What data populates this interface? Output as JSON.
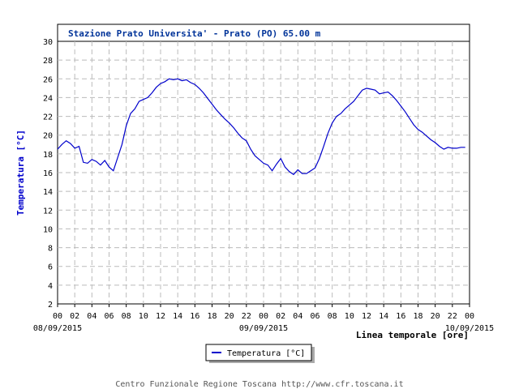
{
  "chart_data": {
    "type": "line",
    "title": "Stazione Prato Universita' - Prato (PO) 65.00 m",
    "ylabel": "Temperatura [°C]",
    "xlabel": "Linea temporale [ore]",
    "ylim": [
      2,
      30
    ],
    "yticks": [
      2,
      4,
      6,
      8,
      10,
      12,
      14,
      16,
      18,
      20,
      22,
      24,
      26,
      28,
      30
    ],
    "xlim": [
      0,
      48
    ],
    "xticks": [
      "00",
      "02",
      "04",
      "06",
      "08",
      "10",
      "12",
      "14",
      "16",
      "18",
      "20",
      "22",
      "00",
      "02",
      "04",
      "06",
      "08",
      "10",
      "12",
      "14",
      "16",
      "18",
      "20",
      "22",
      "00"
    ],
    "date_labels": [
      {
        "label": "08/09/2015",
        "hour": 0
      },
      {
        "label": "09/09/2015",
        "hour": 24
      },
      {
        "label": "10/09/2015",
        "hour": 48
      }
    ],
    "grid": true,
    "legend": "bottom-center",
    "series": [
      {
        "name": "Temperatura [°C]",
        "color": "#0000cc",
        "x": [
          0,
          0.5,
          1,
          1.5,
          2,
          2.5,
          3,
          3.5,
          4,
          4.5,
          5,
          5.5,
          6,
          6.5,
          7,
          7.5,
          8,
          8.5,
          9,
          9.5,
          10,
          10.5,
          11,
          11.5,
          12,
          12.5,
          13,
          13.5,
          14,
          14.5,
          15,
          15.5,
          16,
          16.5,
          17,
          17.5,
          18,
          18.5,
          19,
          19.5,
          20,
          20.5,
          21,
          21.5,
          22,
          22.5,
          23,
          23.5,
          24,
          24.5,
          25,
          25.5,
          26,
          26.5,
          27,
          27.5,
          28,
          28.5,
          29,
          29.5,
          30,
          30.5,
          31,
          31.5,
          32,
          32.5,
          33,
          33.5,
          34,
          34.5,
          35,
          35.5,
          36,
          36.5,
          37,
          37.5,
          38,
          38.5,
          39,
          39.5,
          40,
          40.5,
          41,
          41.5,
          42,
          42.5,
          43,
          43.5,
          44,
          44.5,
          45,
          45.5,
          46,
          46.5,
          47,
          47.5
        ],
        "values": [
          18.5,
          19.0,
          19.4,
          19.1,
          18.6,
          18.8,
          17.1,
          17.0,
          17.4,
          17.2,
          16.8,
          17.3,
          16.6,
          16.2,
          17.6,
          19.0,
          21.0,
          22.3,
          22.8,
          23.6,
          23.8,
          24.0,
          24.5,
          25.1,
          25.5,
          25.7,
          26.0,
          25.9,
          26.0,
          25.8,
          25.9,
          25.6,
          25.4,
          25.0,
          24.5,
          23.9,
          23.3,
          22.7,
          22.2,
          21.7,
          21.3,
          20.8,
          20.2,
          19.7,
          19.4,
          18.5,
          17.8,
          17.4,
          17.0,
          16.8,
          16.2,
          16.9,
          17.5,
          16.6,
          16.1,
          15.8,
          16.3,
          15.9,
          15.9,
          16.2,
          16.5,
          17.5,
          18.8,
          20.2,
          21.3,
          22.0,
          22.3,
          22.8,
          23.2,
          23.6,
          24.2,
          24.8,
          25.0,
          24.9,
          24.8,
          24.4,
          24.5,
          24.6,
          24.2,
          23.7,
          23.1,
          22.5,
          21.8,
          21.1,
          20.6,
          20.3,
          19.9,
          19.5,
          19.2,
          18.8,
          18.5,
          18.7,
          18.6,
          18.6,
          18.7,
          18.7
        ]
      }
    ]
  },
  "footer": {
    "credit": "Centro Funzionale Regione Toscana http://www.cfr.toscana.it"
  }
}
